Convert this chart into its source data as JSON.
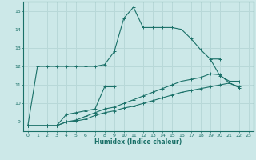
{
  "title": "",
  "xlabel": "Humidex (Indice chaleur)",
  "bg_color": "#cce8e8",
  "grid_color": "#b8d8d8",
  "line_color": "#1a7068",
  "xlim": [
    -0.5,
    23.5
  ],
  "ylim": [
    8.5,
    15.5
  ],
  "yticks": [
    9,
    10,
    11,
    12,
    13,
    14,
    15
  ],
  "xticks": [
    0,
    1,
    2,
    3,
    4,
    5,
    6,
    7,
    8,
    9,
    10,
    11,
    12,
    13,
    14,
    15,
    16,
    17,
    18,
    19,
    20,
    21,
    22,
    23
  ],
  "lines": [
    {
      "x": [
        0,
        1,
        2,
        3,
        4,
        5,
        6,
        7,
        8,
        9,
        10,
        11,
        12,
        13,
        14,
        15,
        16,
        17,
        18,
        19,
        20
      ],
      "y": [
        8.8,
        12.0,
        12.0,
        12.0,
        12.0,
        12.0,
        12.0,
        12.0,
        12.1,
        12.8,
        14.6,
        15.2,
        14.1,
        14.1,
        14.1,
        14.1,
        14.0,
        13.5,
        12.9,
        12.4,
        12.4
      ]
    },
    {
      "x": [
        0,
        2,
        3,
        4,
        5,
        6,
        7,
        8,
        9
      ],
      "y": [
        8.8,
        8.8,
        8.8,
        9.4,
        9.5,
        9.6,
        9.7,
        10.9,
        10.9
      ]
    },
    {
      "x": [
        19,
        20,
        21,
        22
      ],
      "y": [
        12.4,
        11.5,
        11.2,
        11.2
      ]
    },
    {
      "x": [
        0,
        2,
        3,
        4,
        5,
        6,
        7,
        8,
        9,
        10,
        11,
        12,
        13,
        14,
        15,
        16,
        17,
        18,
        19,
        20,
        21,
        22
      ],
      "y": [
        8.8,
        8.8,
        8.8,
        9.0,
        9.1,
        9.3,
        9.5,
        9.7,
        9.8,
        10.0,
        10.2,
        10.4,
        10.6,
        10.8,
        11.0,
        11.2,
        11.3,
        11.4,
        11.6,
        11.55,
        11.1,
        10.9
      ]
    },
    {
      "x": [
        0,
        2,
        3,
        4,
        5,
        6,
        7,
        8,
        9,
        10,
        11,
        12,
        13,
        14,
        15,
        16,
        17,
        18,
        19,
        20,
        21,
        22
      ],
      "y": [
        8.8,
        8.8,
        8.8,
        9.0,
        9.05,
        9.15,
        9.35,
        9.5,
        9.6,
        9.75,
        9.85,
        10.0,
        10.15,
        10.3,
        10.45,
        10.6,
        10.7,
        10.8,
        10.9,
        11.0,
        11.1,
        10.85
      ]
    }
  ]
}
